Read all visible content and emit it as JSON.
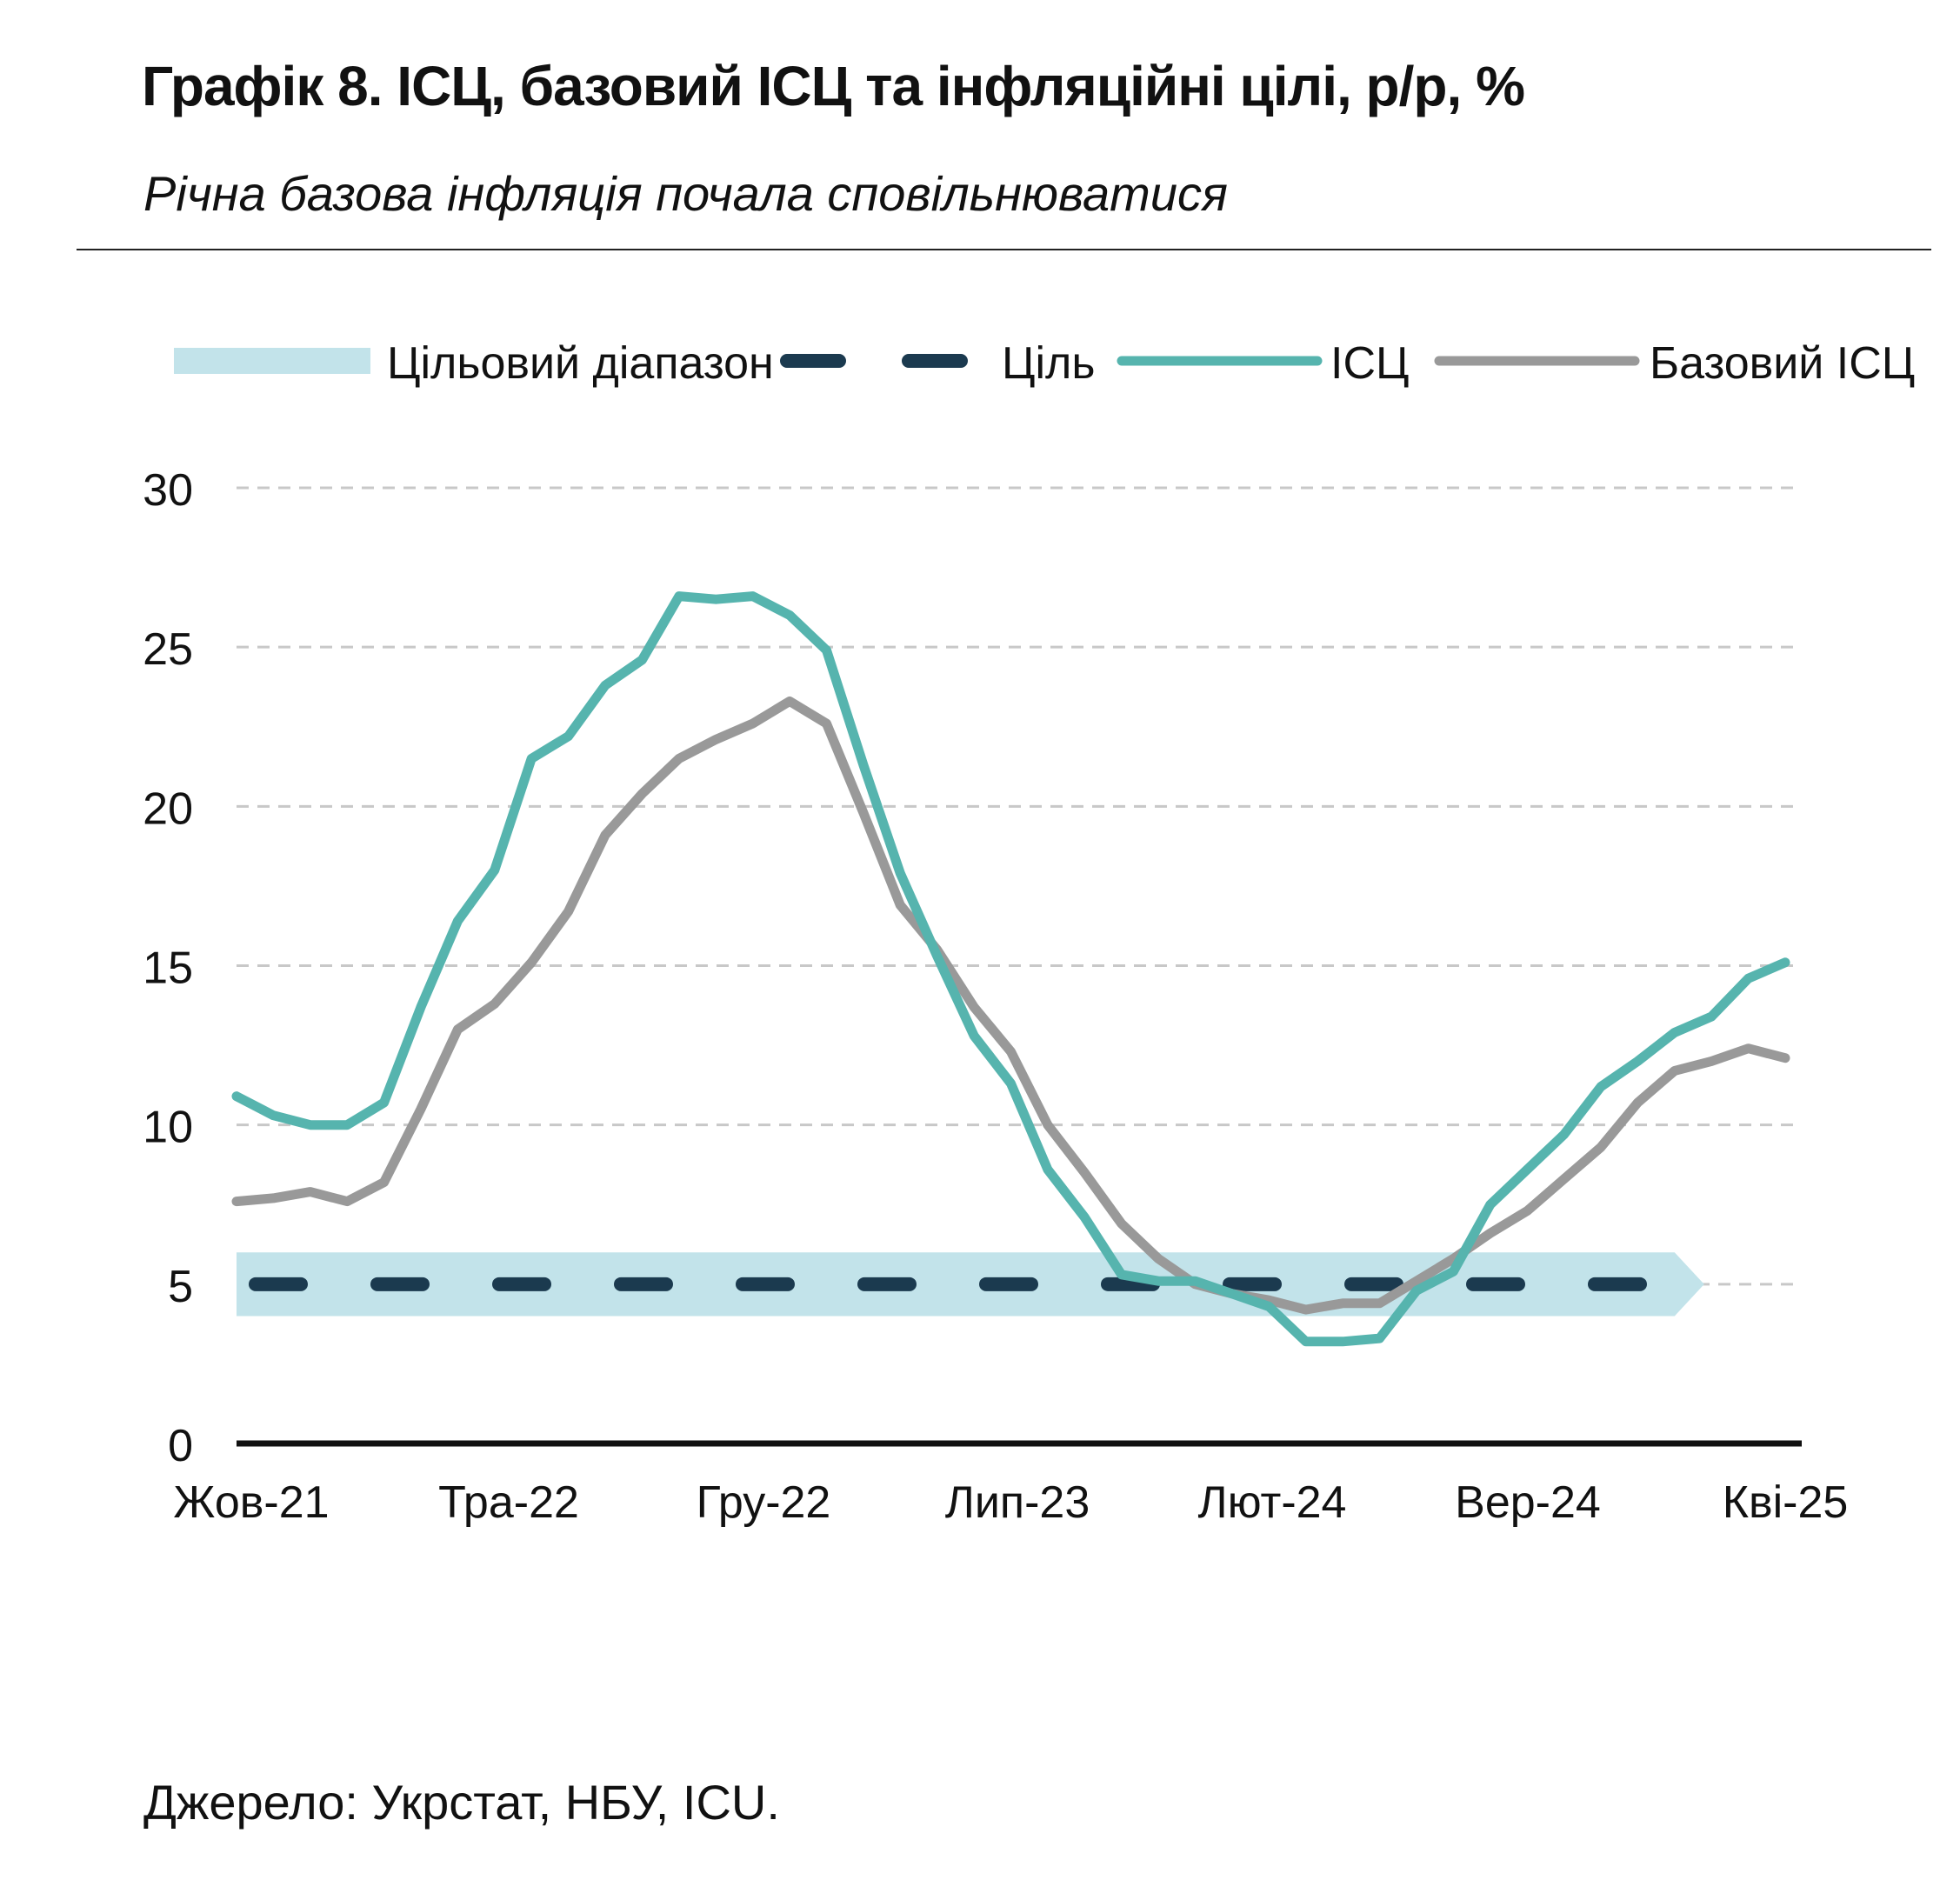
{
  "title": "Графік 8. ІСЦ, базовий ІСЦ та інфляційні цілі, р/р, %",
  "subtitle": "Річна базова інфляція почала сповільнюватися",
  "source": "Джерело: Укрстат, НБУ, ICU.",
  "chart_data": {
    "type": "line",
    "x_tick_labels": [
      "Жов-21",
      "Тра-22",
      "Гру-22",
      "Лип-23",
      "Лют-24",
      "Вер-24",
      "Кві-25"
    ],
    "y_ticks": [
      0,
      5,
      10,
      15,
      20,
      25,
      30
    ],
    "ylim": [
      0,
      30
    ],
    "grid": true,
    "legend_position": "top",
    "legend": [
      "Цільовий діапазон",
      "Ціль",
      "ІСЦ",
      "Базовий ІСЦ"
    ],
    "x": [
      "2021-10",
      "2021-11",
      "2021-12",
      "2022-01",
      "2022-02",
      "2022-03",
      "2022-04",
      "2022-05",
      "2022-06",
      "2022-07",
      "2022-08",
      "2022-09",
      "2022-10",
      "2022-11",
      "2022-12",
      "2023-01",
      "2023-02",
      "2023-03",
      "2023-04",
      "2023-05",
      "2023-06",
      "2023-07",
      "2023-08",
      "2023-09",
      "2023-10",
      "2023-11",
      "2023-12",
      "2024-01",
      "2024-02",
      "2024-03",
      "2024-04",
      "2024-05",
      "2024-06",
      "2024-07",
      "2024-08",
      "2024-09",
      "2024-10",
      "2024-11",
      "2024-12",
      "2025-01",
      "2025-02",
      "2025-03",
      "2025-04"
    ],
    "series": [
      {
        "name": "ІСЦ",
        "color": "#56b4ae",
        "values": [
          10.9,
          10.3,
          10.0,
          10.0,
          10.7,
          13.7,
          16.4,
          18.0,
          21.5,
          22.2,
          23.8,
          24.6,
          26.6,
          26.5,
          26.6,
          26.0,
          24.9,
          21.3,
          17.9,
          15.3,
          12.8,
          11.3,
          8.6,
          7.1,
          5.3,
          5.1,
          5.1,
          4.7,
          4.3,
          3.2,
          3.2,
          3.3,
          4.8,
          5.4,
          7.5,
          8.6,
          9.7,
          11.2,
          12.0,
          12.9,
          13.4,
          14.6,
          15.1
        ]
      },
      {
        "name": "Базовий ІСЦ",
        "color": "#999999",
        "values": [
          7.6,
          7.7,
          7.9,
          7.6,
          8.2,
          10.5,
          13.0,
          13.8,
          15.1,
          16.7,
          19.1,
          20.4,
          21.5,
          22.1,
          22.6,
          23.3,
          22.6,
          19.8,
          16.9,
          15.5,
          13.7,
          12.3,
          10.0,
          8.5,
          6.9,
          5.8,
          5.0,
          4.7,
          4.5,
          4.2,
          4.4,
          4.4,
          5.1,
          5.8,
          6.6,
          7.3,
          8.3,
          9.3,
          10.7,
          11.7,
          12.0,
          12.4,
          12.1
        ]
      }
    ],
    "target": {
      "name": "Ціль",
      "value": 5,
      "range": [
        4,
        6
      ],
      "range_name": "Цільовий діапазон",
      "start": "2021-10",
      "end": "2025-01",
      "line_color": "#1b3a4f",
      "range_color": "#c2e3ea"
    }
  }
}
